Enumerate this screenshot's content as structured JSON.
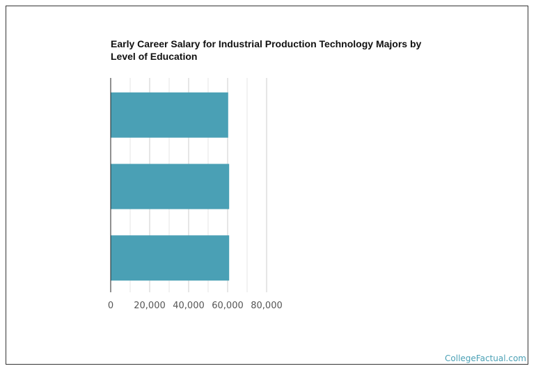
{
  "chart_data": {
    "type": "bar",
    "orientation": "horizontal",
    "title": "Early Career Salary for Industrial Production Technology Majors by Level of Education",
    "categories": [
      "",
      "",
      ""
    ],
    "values": [
      60300,
      60800,
      60800
    ],
    "xlim": [
      0,
      90000
    ],
    "ticks": [
      0,
      20000,
      40000,
      60000,
      80000
    ],
    "tick_labels": [
      "0",
      "20,000",
      "40,000",
      "60,000",
      "80,000"
    ],
    "grid": true,
    "bar_color": "#4aa0b5",
    "xlabel": "",
    "ylabel": ""
  },
  "watermark": "CollegeFactual.com"
}
